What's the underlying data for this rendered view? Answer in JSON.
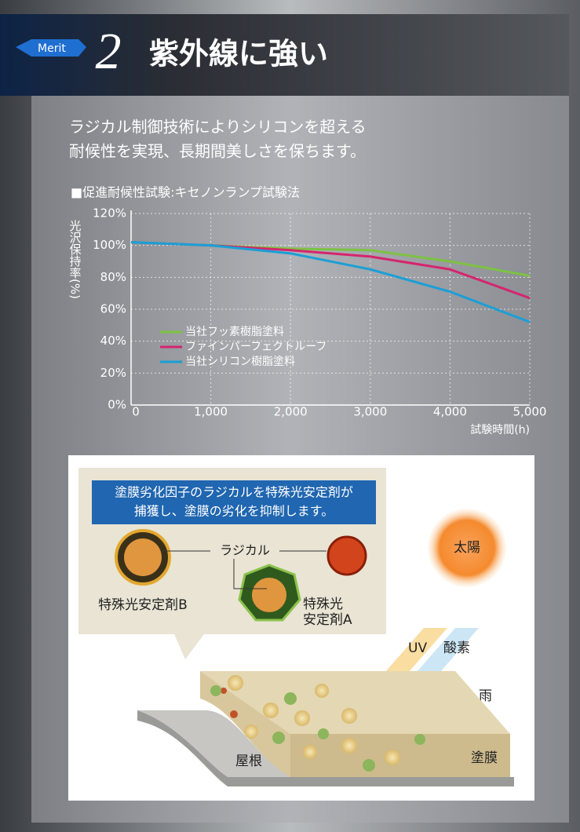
{
  "header": {
    "merit": "Merit",
    "number": "2",
    "title": "紫外線に強い"
  },
  "description": [
    "ラジカル制御技術によりシリコンを超える",
    "耐候性を実現、長期間美しさを保ちます。"
  ],
  "chart_data": {
    "type": "line",
    "title": "■促進耐候性試験:キセノンランプ試験法",
    "y_label": "光沢保持率(%)",
    "x_label": "試験時間(h)",
    "x": [
      0,
      1000,
      2000,
      3000,
      4000,
      5000
    ],
    "series": [
      {
        "name": "当社フッ素樹脂塗料",
        "color": "#7dc242",
        "values": [
          102,
          100,
          98,
          97,
          90,
          81
        ]
      },
      {
        "name": "ファインパーフェクトルーフ",
        "color": "#d6246e",
        "values": [
          102,
          100,
          97,
          93,
          85,
          67
        ]
      },
      {
        "name": "当社シリコン樹脂塗料",
        "color": "#1a9fd6",
        "values": [
          102,
          100,
          95,
          85,
          71,
          52
        ]
      }
    ],
    "xlim": [
      0,
      5000
    ],
    "ylim": [
      0,
      120
    ],
    "xticks": [
      0,
      {
        "value": 1000,
        "label": "1,000"
      },
      {
        "value": 2000,
        "label": "2,000"
      },
      {
        "value": 3000,
        "label": "3,000"
      },
      {
        "value": 4000,
        "label": "4,000"
      },
      {
        "value": 5000,
        "label": "5,000"
      }
    ],
    "yticks": [
      {
        "value": 0,
        "label": "0%"
      },
      {
        "value": 20,
        "label": "20%"
      },
      {
        "value": 40,
        "label": "40%"
      },
      {
        "value": 60,
        "label": "60%"
      },
      {
        "value": 80,
        "label": "80%"
      },
      {
        "value": 100,
        "label": "100%"
      },
      {
        "value": 120,
        "label": "120%"
      }
    ],
    "grid": true
  },
  "diagram": {
    "caption": [
      "塗膜劣化因子のラジカルを特殊光安定剤が",
      "捕獲し、塗膜の劣化を抑制します。"
    ],
    "radical": "ラジカル",
    "stabilizer_b": "特殊光安定剤B",
    "stabilizer_a": [
      "特殊光",
      "安定剤A"
    ],
    "sun": "太陽",
    "uv": "UV",
    "oxygen": "酸素",
    "rain": "雨",
    "roof": "屋根",
    "coating": "塗膜"
  }
}
